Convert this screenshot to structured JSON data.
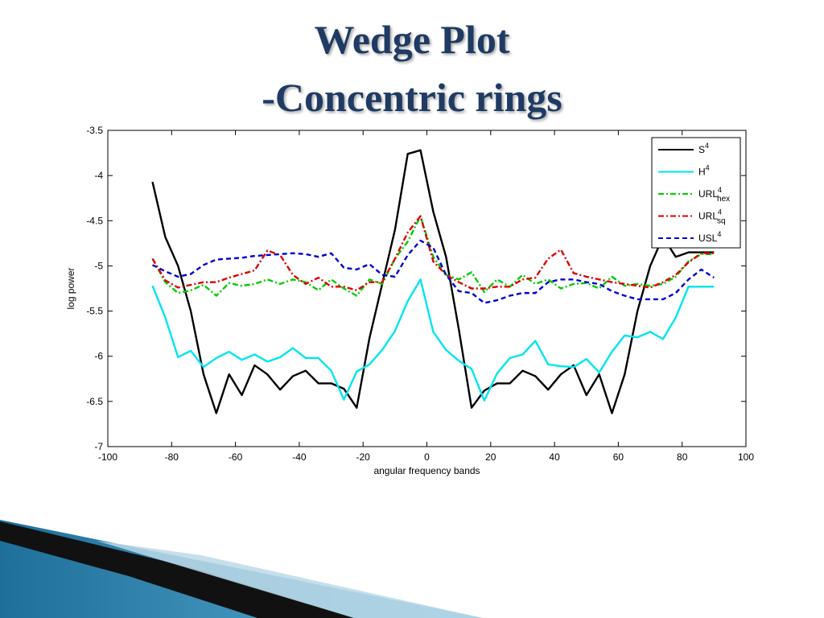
{
  "slide": {
    "title_line1": "Wedge Plot",
    "title_line2": "-Concentric rings"
  },
  "colors": {
    "title": "#1f3b63",
    "S4": "#000000",
    "H4": "#00e5ee",
    "URL_hex": "#00cc00",
    "URL_sq": "#dd0000",
    "USL": "#0000cc"
  },
  "chart_data": {
    "type": "line",
    "title": "",
    "xlabel": "angular frequency bands",
    "ylabel": "log power",
    "xlim": [
      -100,
      100
    ],
    "ylim": [
      -7,
      -3.5
    ],
    "xticks": [
      -100,
      -80,
      -60,
      -40,
      -20,
      0,
      20,
      40,
      60,
      80,
      100
    ],
    "yticks": [
      -7,
      -6.5,
      -6,
      -5.5,
      -5,
      -4.5,
      -4,
      -3.5
    ],
    "legend_position": "top-right",
    "x": [
      -86,
      -82,
      -78,
      -74,
      -70,
      -66,
      -62,
      -58,
      -54,
      -50,
      -46,
      -42,
      -38,
      -34,
      -30,
      -26,
      -22,
      -18,
      -14,
      -10,
      -6,
      -2,
      2,
      6,
      10,
      14,
      18,
      22,
      26,
      30,
      34,
      38,
      42,
      46,
      50,
      54,
      58,
      62,
      66,
      70,
      74,
      78,
      82,
      86,
      90
    ],
    "series": [
      {
        "key": "S4",
        "label": "S",
        "sup": "4",
        "sub": "",
        "style": "solid",
        "values": [
          -4.07,
          -4.68,
          -5.0,
          -5.5,
          -6.2,
          -6.63,
          -6.2,
          -6.43,
          -6.1,
          -6.2,
          -6.37,
          -6.22,
          -6.16,
          -6.3,
          -6.3,
          -6.36,
          -6.57,
          -5.8,
          -5.2,
          -4.6,
          -3.76,
          -3.72,
          -4.4,
          -4.9,
          -5.7,
          -6.57,
          -6.38,
          -6.3,
          -6.3,
          -6.16,
          -6.22,
          -6.37,
          -6.2,
          -6.1,
          -6.43,
          -6.2,
          -6.63,
          -6.2,
          -5.5,
          -5.0,
          -4.68,
          -4.9,
          -4.85,
          -4.85,
          -4.85
        ]
      },
      {
        "key": "H4",
        "label": "H",
        "sup": "4",
        "sub": "",
        "style": "solid",
        "values": [
          -5.22,
          -5.57,
          -6.01,
          -5.94,
          -6.12,
          -6.02,
          -5.95,
          -6.04,
          -5.98,
          -6.06,
          -6.01,
          -5.91,
          -6.02,
          -6.02,
          -6.16,
          -6.48,
          -6.17,
          -6.09,
          -5.93,
          -5.72,
          -5.39,
          -5.15,
          -5.73,
          -5.93,
          -6.05,
          -6.14,
          -6.49,
          -6.19,
          -6.02,
          -5.98,
          -5.83,
          -6.09,
          -6.11,
          -6.12,
          -6.03,
          -6.18,
          -5.95,
          -5.77,
          -5.79,
          -5.73,
          -5.81,
          -5.57,
          -5.23,
          -5.23,
          -5.23
        ]
      },
      {
        "key": "URL_hex",
        "label": "URL",
        "sup": "4",
        "sub": "hex",
        "style": "dashdot",
        "values": [
          -4.92,
          -5.18,
          -5.3,
          -5.27,
          -5.21,
          -5.33,
          -5.19,
          -5.22,
          -5.2,
          -5.15,
          -5.2,
          -5.15,
          -5.18,
          -5.27,
          -5.15,
          -5.25,
          -5.33,
          -5.15,
          -5.2,
          -4.92,
          -4.73,
          -4.45,
          -4.9,
          -5.1,
          -5.15,
          -5.07,
          -5.29,
          -5.15,
          -5.23,
          -5.1,
          -5.2,
          -5.15,
          -5.25,
          -5.2,
          -5.19,
          -5.25,
          -5.12,
          -5.22,
          -5.2,
          -5.22,
          -5.2,
          -5.12,
          -4.95,
          -4.87,
          -4.87
        ]
      },
      {
        "key": "URL_sq",
        "label": "URL",
        "sup": "4",
        "sub": "sq",
        "style": "dashdot",
        "values": [
          -4.92,
          -5.16,
          -5.24,
          -5.21,
          -5.18,
          -5.18,
          -5.13,
          -5.09,
          -5.05,
          -4.83,
          -4.88,
          -5.1,
          -5.2,
          -5.13,
          -5.23,
          -5.23,
          -5.27,
          -5.18,
          -5.18,
          -4.92,
          -4.63,
          -4.45,
          -4.95,
          -5.1,
          -5.18,
          -5.25,
          -5.25,
          -5.23,
          -5.23,
          -5.15,
          -5.13,
          -4.92,
          -4.82,
          -5.08,
          -5.12,
          -5.15,
          -5.18,
          -5.2,
          -5.22,
          -5.24,
          -5.18,
          -5.1,
          -4.96,
          -4.86,
          -4.86
        ]
      },
      {
        "key": "USL",
        "label": "USL",
        "sup": "4",
        "sub": "",
        "style": "dashed",
        "values": [
          -4.99,
          -5.06,
          -5.12,
          -5.09,
          -4.99,
          -4.93,
          -4.92,
          -4.91,
          -4.89,
          -4.88,
          -4.87,
          -4.86,
          -4.87,
          -4.9,
          -4.86,
          -5.02,
          -5.04,
          -4.98,
          -5.1,
          -5.12,
          -4.88,
          -4.72,
          -4.8,
          -5.1,
          -5.28,
          -5.3,
          -5.41,
          -5.38,
          -5.33,
          -5.3,
          -5.3,
          -5.18,
          -5.15,
          -5.15,
          -5.18,
          -5.2,
          -5.28,
          -5.33,
          -5.37,
          -5.37,
          -5.37,
          -5.3,
          -5.15,
          -5.04,
          -5.13
        ]
      }
    ]
  }
}
